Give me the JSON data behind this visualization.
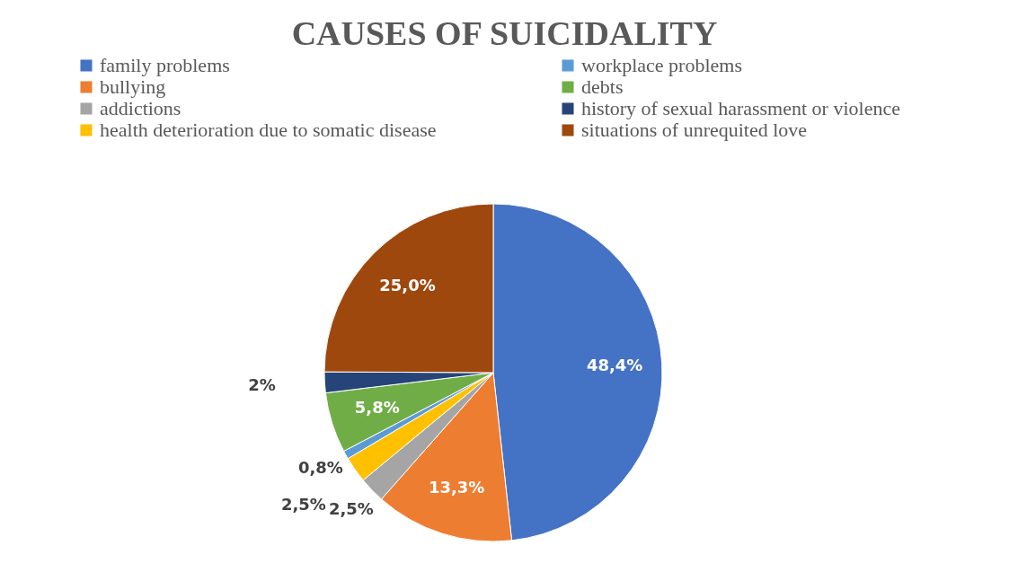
{
  "chart_data": {
    "type": "pie",
    "title": "CAUSES OF SUICIDALITY",
    "categories": [
      "family problems",
      "bullying",
      "addictions",
      "health deterioration due to somatic disease",
      "workplace problems",
      "debts",
      "history of sexual harassment or violence",
      "situations of unrequited love"
    ],
    "values": [
      48.4,
      13.3,
      2.5,
      2.5,
      0.8,
      5.8,
      2,
      25.0
    ],
    "colors": [
      "#4472c4",
      "#ed7d31",
      "#a5a5a5",
      "#ffc000",
      "#5b9bd5",
      "#70ad47",
      "#264478",
      "#9e480e"
    ],
    "value_labels": [
      "48,4%",
      "13,3%",
      "2,5%",
      "2,5%",
      "0,8%",
      "5,8%",
      "2%",
      "25,0%"
    ],
    "legend": "top"
  }
}
